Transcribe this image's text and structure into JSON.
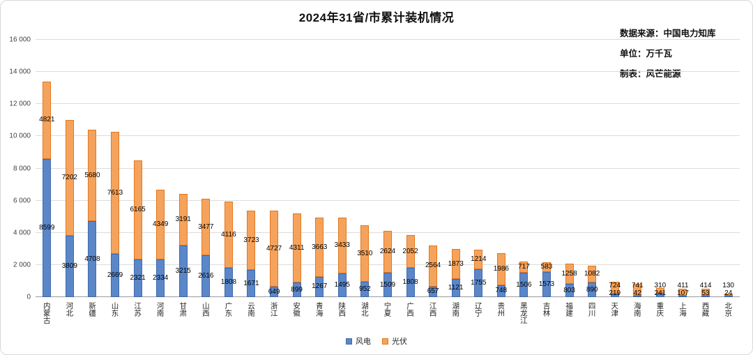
{
  "header": {
    "title": "2024年31省/市累计装机情况",
    "meta": {
      "source": "数据来源：中国电力知库",
      "unit": "单位：万千瓦",
      "maker": "制表：风芒能源"
    }
  },
  "chart_data": {
    "type": "bar",
    "stacked": true,
    "title": "2024年31省/市累计装机情况",
    "unit": "万千瓦",
    "categories": [
      "内蒙古",
      "河北",
      "新疆",
      "山东",
      "江苏",
      "河南",
      "甘肃",
      "山西",
      "广东",
      "云南",
      "浙江",
      "安徽",
      "青海",
      "陕西",
      "湖北",
      "宁夏",
      "广西",
      "江西",
      "湖南",
      "辽宁",
      "贵州",
      "黑龙江",
      "吉林",
      "福建",
      "四川",
      "天津",
      "海南",
      "重庆",
      "上海",
      "西藏",
      "北京"
    ],
    "series": [
      {
        "id": "wind",
        "name": "风电",
        "fill": "#5b87c8",
        "border": "#3f69ad",
        "values": [
          8599,
          3809,
          4708,
          2669,
          2321,
          2334,
          3215,
          2616,
          1808,
          1671,
          649,
          899,
          1267,
          1495,
          952,
          1509,
          1808,
          657,
          1121,
          1755,
          748,
          1506,
          1573,
          803,
          890,
          219,
          42,
          241,
          107,
          53,
          24
        ]
      },
      {
        "id": "solar",
        "name": "光伏",
        "fill": "#f5a35c",
        "border": "#e0771f",
        "values": [
          4821,
          7202,
          5680,
          7613,
          6165,
          4349,
          3191,
          3477,
          4116,
          3723,
          4727,
          4311,
          3663,
          3433,
          3510,
          2624,
          2052,
          2564,
          1873,
          1214,
          1986,
          717,
          583,
          1258,
          1082,
          724,
          741,
          310,
          411,
          414,
          130
        ]
      }
    ],
    "ylim": [
      0,
      16000
    ],
    "ytick_interval": 2000,
    "yticks": [
      "0",
      "2 000",
      "4 000",
      "6 000",
      "8 000",
      "10 000",
      "12 000",
      "14 000",
      "16 000"
    ],
    "grid": true,
    "legend_position": "bottom"
  }
}
